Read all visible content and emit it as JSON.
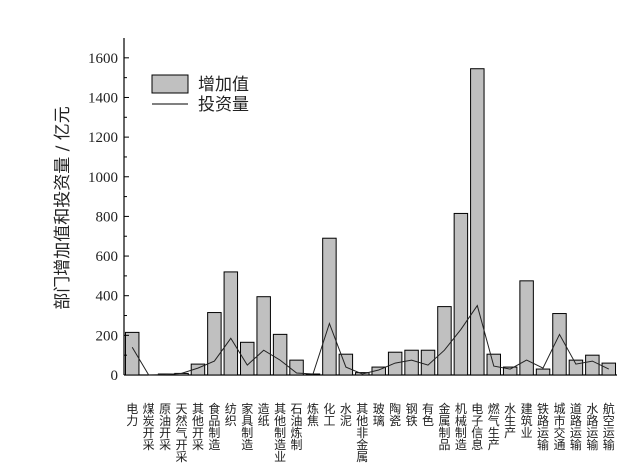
{
  "chart_data": {
    "type": "bar",
    "ylabel": "部门增加值和投资量 / 亿元",
    "xlabel": "",
    "ylim": [
      0,
      1700
    ],
    "yticks": [
      0,
      200,
      400,
      600,
      800,
      1000,
      1200,
      1400,
      1600
    ],
    "grid": false,
    "legend_position": "top-left",
    "categories": [
      "电力",
      "煤炭开采",
      "原油开采",
      "天然气开采",
      "其他开采",
      "食品制造",
      "纺织",
      "家具制造",
      "造纸",
      "其他制造业",
      "石油炼制",
      "炼焦",
      "化工",
      "水泥",
      "其他非金属",
      "玻璃",
      "陶瓷",
      "钢铁",
      "有色",
      "金属制品",
      "机械制造",
      "电子信息",
      "燃气生产",
      "水生产",
      "建筑业",
      "铁路运输",
      "城市交通",
      "道路运输",
      "水路运输",
      "航空运输"
    ],
    "series": [
      {
        "name": "增加值",
        "type": "bar",
        "color": "#c0c0c0",
        "values": [
          215,
          0,
          5,
          8,
          55,
          315,
          520,
          165,
          395,
          205,
          75,
          5,
          690,
          105,
          12,
          40,
          115,
          125,
          125,
          345,
          815,
          1545,
          105,
          40,
          475,
          30,
          310,
          75,
          100,
          60
        ]
      },
      {
        "name": "投资量",
        "type": "line",
        "color": "#222222",
        "values": [
          140,
          0,
          2,
          8,
          35,
          70,
          185,
          50,
          125,
          75,
          10,
          5,
          260,
          40,
          5,
          25,
          60,
          75,
          50,
          125,
          230,
          350,
          45,
          30,
          75,
          35,
          205,
          55,
          70,
          30
        ]
      }
    ]
  }
}
